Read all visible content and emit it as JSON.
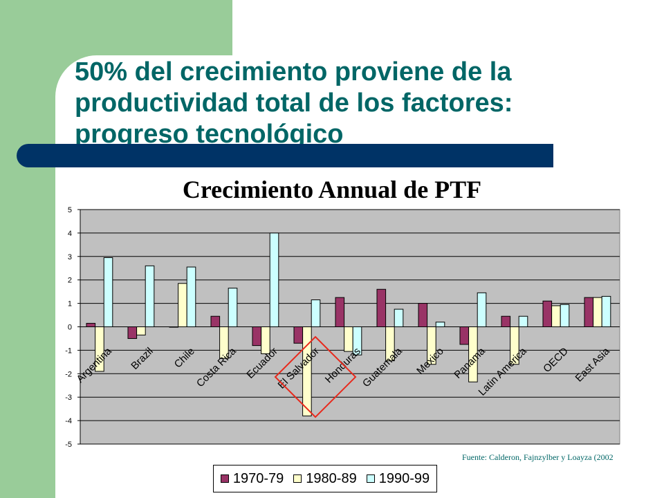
{
  "slide": {
    "title": "50% del crecimiento proviene de la productividad total de los factores: progreso tecnológico",
    "source": "Fuente: Calderon, Fajnzylber y Loayza (2002"
  },
  "colors": {
    "side_band": "#99cc99",
    "title_bar": "#003366",
    "title_text": "#006666",
    "plot_area": "#c0c0c0",
    "highlight": "#e8291c"
  },
  "chart_data": {
    "type": "bar",
    "title": "Crecimiento Annual de PTF",
    "xlabel": "",
    "ylabel": "",
    "ylim": [
      -5,
      5
    ],
    "yticks": [
      5,
      4,
      3,
      2,
      1,
      0,
      -1,
      -2,
      -3,
      -4,
      -5
    ],
    "grid": true,
    "legend_position": "bottom",
    "highlighted_category": "El Salvador",
    "categories": [
      "Argentina",
      "Brazil",
      "Chile",
      "Costa Rica",
      "Ecuador",
      "El Salvador",
      "Honduras",
      "Guatemala",
      "Mexico",
      "Panama",
      "Latin America",
      "OECD",
      "East Asia"
    ],
    "series": [
      {
        "name": "1970-79",
        "color": "#993366",
        "values": [
          0.15,
          -0.5,
          0.0,
          0.45,
          -0.8,
          -0.7,
          1.25,
          1.6,
          1.0,
          -0.75,
          0.45,
          1.1,
          1.25
        ]
      },
      {
        "name": "1980-89",
        "color": "#ffffcc",
        "values": [
          -1.9,
          -0.35,
          1.85,
          -1.35,
          -1.15,
          -3.8,
          -1.05,
          -1.45,
          -1.6,
          -2.35,
          -1.6,
          0.9,
          1.25
        ]
      },
      {
        "name": "1990-99",
        "color": "#ccffff",
        "values": [
          2.95,
          2.6,
          2.55,
          1.65,
          4.0,
          1.15,
          -1.2,
          0.75,
          0.2,
          1.45,
          0.45,
          0.95,
          1.3
        ]
      }
    ]
  }
}
